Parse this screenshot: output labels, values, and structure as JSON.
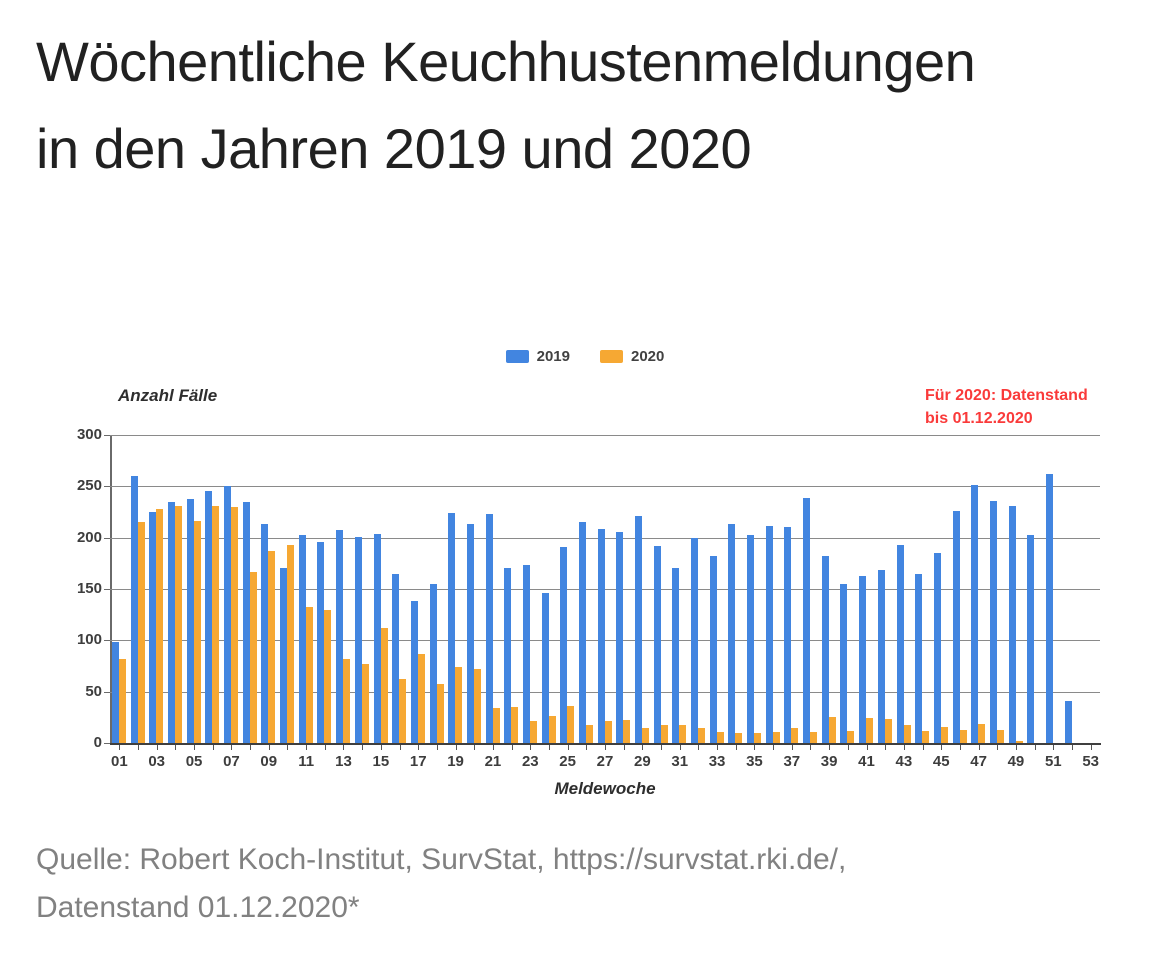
{
  "title": "Wöchentliche Keuchhustenmeldungen in den Jahren 2019 und 2020",
  "legend": [
    {
      "label": "2019",
      "color": "#4285E0"
    },
    {
      "label": "2020",
      "color": "#F6A833"
    }
  ],
  "annotation": {
    "line1": "Für 2020: Datenstand",
    "line2": "bis 01.12.2020",
    "color": "#FA3A3A"
  },
  "source": {
    "line1": "Quelle: Robert Koch-Institut, SurvStat, https://survstat.rki.de/,",
    "line2": "Datenstand 01.12.2020*"
  },
  "colors": {
    "grid": "#8a8a8a",
    "axis_text": "#3d3d3d"
  },
  "chart_data": {
    "type": "bar",
    "title": "",
    "ylabel": "Anzahl Fälle",
    "xlabel": "Meldewoche",
    "ylim": [
      0,
      300
    ],
    "yticks": [
      0,
      50,
      100,
      150,
      200,
      250,
      300
    ],
    "grid": true,
    "legend_position": "top-center",
    "categories": [
      "01",
      "02",
      "03",
      "04",
      "05",
      "06",
      "07",
      "08",
      "09",
      "10",
      "11",
      "12",
      "13",
      "14",
      "15",
      "16",
      "17",
      "18",
      "19",
      "20",
      "21",
      "22",
      "23",
      "24",
      "25",
      "26",
      "27",
      "28",
      "29",
      "30",
      "31",
      "32",
      "33",
      "34",
      "35",
      "36",
      "37",
      "38",
      "39",
      "40",
      "41",
      "42",
      "43",
      "44",
      "45",
      "46",
      "47",
      "48",
      "49",
      "50",
      "51",
      "52",
      "53"
    ],
    "xtick_labels": [
      "01",
      "03",
      "05",
      "07",
      "09",
      "11",
      "13",
      "15",
      "17",
      "19",
      "21",
      "23",
      "25",
      "27",
      "29",
      "31",
      "33",
      "35",
      "37",
      "39",
      "41",
      "43",
      "45",
      "47",
      "49",
      "51",
      "53"
    ],
    "series": [
      {
        "name": "2019",
        "color": "#4285E0",
        "values": [
          98,
          260,
          225,
          235,
          238,
          245,
          250,
          235,
          213,
          170,
          203,
          196,
          207,
          201,
          204,
          165,
          138,
          155,
          224,
          213,
          223,
          170,
          173,
          146,
          191,
          215,
          208,
          206,
          221,
          192,
          170,
          200,
          182,
          213,
          203,
          211,
          210,
          239,
          182,
          155,
          163,
          169,
          193,
          165,
          185,
          226,
          251,
          236,
          231,
          203,
          262,
          41,
          0
        ]
      },
      {
        "name": "2020",
        "color": "#F6A833",
        "values": [
          82,
          215,
          228,
          231,
          216,
          231,
          230,
          167,
          187,
          193,
          132,
          130,
          82,
          77,
          112,
          62,
          87,
          57,
          74,
          72,
          34,
          35,
          21,
          26,
          36,
          18,
          21,
          22,
          15,
          18,
          18,
          15,
          11,
          10,
          10,
          11,
          15,
          11,
          25,
          12,
          24,
          23,
          18,
          12,
          16,
          13,
          19,
          13,
          2,
          0,
          0,
          0,
          0
        ]
      }
    ]
  }
}
